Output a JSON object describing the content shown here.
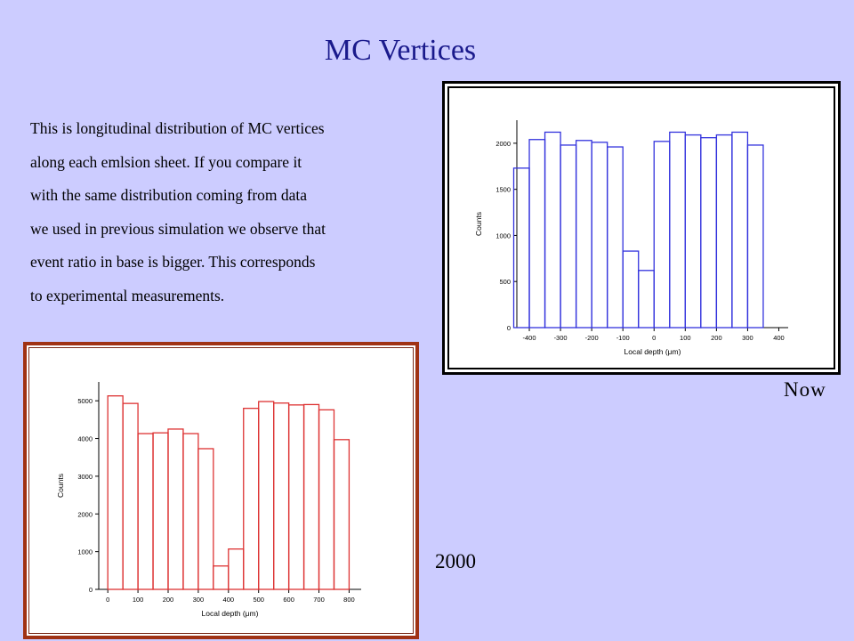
{
  "title": "MC Vertices",
  "description_lines": [
    "This is longitudinal distribution of MC vertices",
    "along each emlsion sheet. If you compare it",
    "with the same distribution coming from data",
    "we used in previous simulation we observe  that",
    "event ratio in base is bigger. This corresponds",
    "to experimental measurements."
  ],
  "labels": {
    "now": "Now",
    "year2000": "2000"
  },
  "chart_data": [
    {
      "id": "now",
      "type": "bar",
      "style": "histogram-step",
      "color": "#3333dd",
      "xlabel": "Local depth (μm)",
      "ylabel": "Counts",
      "xlim": [
        -440,
        430
      ],
      "ylim": [
        0,
        2250
      ],
      "xticks": [
        -400,
        -300,
        -200,
        -100,
        0,
        100,
        200,
        300,
        400
      ],
      "yticks": [
        0,
        500,
        1000,
        1500,
        2000
      ],
      "bin_edges": [
        -450,
        -400,
        -350,
        -300,
        -250,
        -200,
        -150,
        -100,
        -50,
        0,
        50,
        100,
        150,
        200,
        250,
        300,
        350
      ],
      "values": [
        1730,
        2040,
        2120,
        1980,
        2030,
        2010,
        1960,
        830,
        620,
        2020,
        2120,
        2090,
        2060,
        2090,
        2120,
        1980
      ]
    },
    {
      "id": "year2000",
      "type": "bar",
      "style": "histogram-step",
      "color": "#dd3333",
      "xlabel": "Local depth (μm)",
      "ylabel": "Counts",
      "xlim": [
        -30,
        840
      ],
      "ylim": [
        0,
        5500
      ],
      "xticks": [
        0,
        100,
        200,
        300,
        400,
        500,
        600,
        700,
        800
      ],
      "yticks": [
        0,
        1000,
        2000,
        3000,
        4000,
        5000
      ],
      "bin_edges": [
        0,
        50,
        100,
        150,
        200,
        250,
        300,
        350,
        400,
        450,
        500,
        550,
        600,
        650,
        700,
        750,
        800
      ],
      "values": [
        5130,
        4930,
        4130,
        4150,
        4250,
        4130,
        3730,
        620,
        1070,
        4800,
        4980,
        4940,
        4890,
        4900,
        4760,
        3970
      ]
    }
  ]
}
